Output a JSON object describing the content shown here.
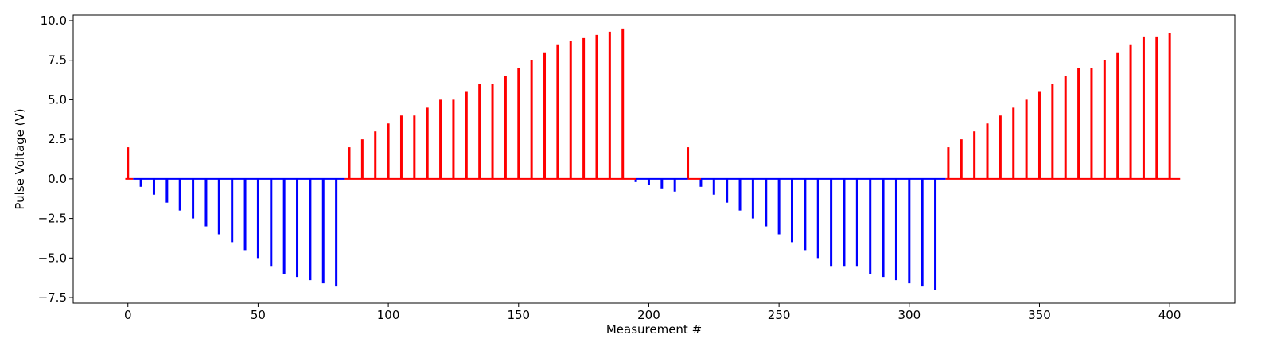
{
  "chart_data": {
    "type": "bar",
    "title": "",
    "xlabel": "Measurement #",
    "ylabel": "Pulse Voltage (V)",
    "xlim": [
      -21,
      425
    ],
    "ylim": [
      -7.85,
      10.35
    ],
    "xticks": [
      0,
      50,
      100,
      150,
      200,
      250,
      300,
      350,
      400
    ],
    "xtick_labels": [
      "0",
      "50",
      "100",
      "150",
      "200",
      "250",
      "300",
      "350",
      "400"
    ],
    "yticks": [
      -7.5,
      -5.0,
      -2.5,
      0.0,
      2.5,
      5.0,
      7.5,
      10.0
    ],
    "ytick_labels": [
      "−7.5",
      "−5.0",
      "−2.5",
      "0.0",
      "2.5",
      "5.0",
      "7.5",
      "10.0"
    ],
    "grid": false,
    "colors": {
      "positive": "#ff0000",
      "negative": "#0000ff"
    },
    "baseline_segments": [
      {
        "from": -1,
        "to": 2,
        "color": "#ff0000"
      },
      {
        "from": 2,
        "to": 83,
        "color": "#0000ff"
      },
      {
        "from": 83,
        "to": 195,
        "color": "#ff0000"
      },
      {
        "from": 195,
        "to": 215,
        "color": "#0000ff"
      },
      {
        "from": 215,
        "to": 220,
        "color": "#ff0000"
      },
      {
        "from": 220,
        "to": 314,
        "color": "#0000ff"
      },
      {
        "from": 314,
        "to": 404,
        "color": "#ff0000"
      }
    ],
    "x": [
      0,
      5,
      10,
      15,
      20,
      25,
      30,
      35,
      40,
      45,
      50,
      55,
      60,
      65,
      70,
      75,
      80,
      85,
      90,
      95,
      100,
      105,
      110,
      115,
      120,
      125,
      130,
      135,
      140,
      145,
      150,
      155,
      160,
      165,
      170,
      175,
      180,
      185,
      190,
      195,
      200,
      205,
      210,
      215,
      220,
      225,
      230,
      235,
      240,
      245,
      250,
      255,
      260,
      265,
      270,
      275,
      280,
      285,
      290,
      295,
      300,
      305,
      310,
      315,
      320,
      325,
      330,
      335,
      340,
      345,
      350,
      355,
      360,
      365,
      370,
      375,
      380,
      385,
      390,
      395,
      400
    ],
    "values": [
      2.0,
      -0.5,
      -1.0,
      -1.5,
      -2.0,
      -2.5,
      -3.0,
      -3.5,
      -4.0,
      -4.5,
      -5.0,
      -5.5,
      -6.0,
      -6.2,
      -6.4,
      -6.6,
      -6.8,
      2.0,
      2.5,
      3.0,
      3.5,
      4.0,
      4.0,
      4.5,
      5.0,
      5.0,
      5.5,
      6.0,
      6.0,
      6.5,
      7.0,
      7.5,
      8.0,
      8.5,
      8.7,
      8.9,
      9.1,
      9.3,
      9.5,
      -0.2,
      -0.4,
      -0.6,
      -0.8,
      2.0,
      -0.5,
      -1.0,
      -1.5,
      -2.0,
      -2.5,
      -3.0,
      -3.5,
      -4.0,
      -4.5,
      -5.0,
      -5.5,
      -5.5,
      -5.5,
      -6.0,
      -6.2,
      -6.4,
      -6.6,
      -6.8,
      -7.0,
      2.0,
      2.5,
      3.0,
      3.5,
      4.0,
      4.5,
      5.0,
      5.5,
      6.0,
      6.5,
      7.0,
      7.0,
      7.5,
      8.0,
      8.5,
      9.0,
      9.0,
      9.2
    ]
  }
}
